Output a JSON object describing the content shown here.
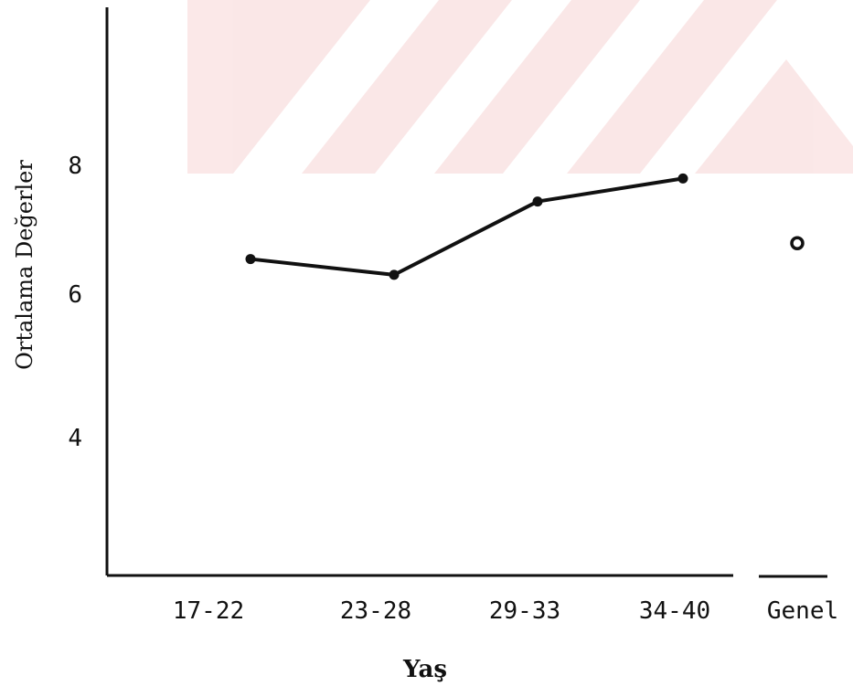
{
  "chart_data": {
    "type": "line",
    "xlabel": "Yaş",
    "ylabel": "Ortalama Değerler",
    "categories": [
      "17-22",
      "23-28",
      "29-33",
      "34-40"
    ],
    "series": [
      {
        "values": [
          6.5,
          6.28,
          7.3,
          7.62
        ]
      }
    ],
    "overall": {
      "label": "Genel",
      "value": 6.72,
      "marker": "open-circle"
    },
    "yticks": [
      "8",
      "6",
      "4"
    ],
    "ylim": [
      2.1,
      10.0
    ],
    "grid": false,
    "legend": "none",
    "colors": {
      "ink": "#111111",
      "watermark": "#f7d5d5"
    }
  }
}
